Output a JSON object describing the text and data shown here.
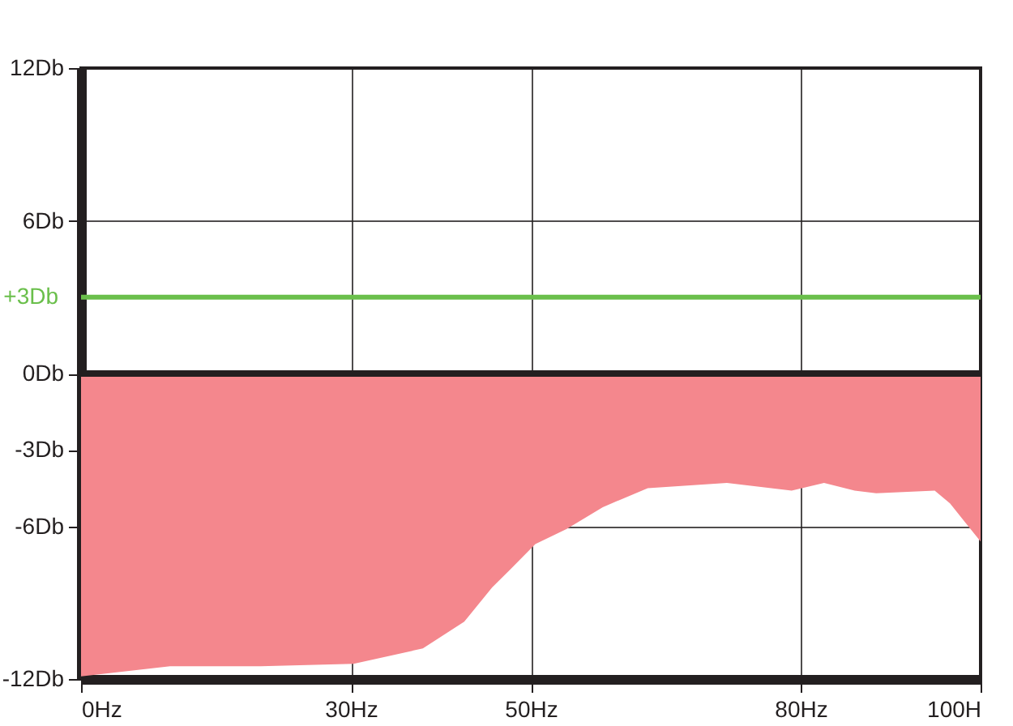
{
  "chart_data": {
    "type": "area",
    "x": [
      0,
      9.9,
      20,
      30.3,
      38,
      42.6,
      45.7,
      47.7,
      50.5,
      54,
      58,
      63,
      71.8,
      79,
      82.6,
      86,
      88.4,
      94.9,
      96.6,
      98.4,
      100
    ],
    "values": [
      -11.9,
      -11.5,
      -11.5,
      -11.4,
      -10.8,
      -9.75,
      -8.4,
      -7.7,
      -6.7,
      -6.1,
      -5.25,
      -4.5,
      -4.3,
      -4.6,
      -4.3,
      -4.6,
      -4.7,
      -4.6,
      -5.1,
      -5.9,
      -6.6
    ],
    "color": "#f4878d",
    "xlim": [
      0,
      100
    ],
    "xticks": [
      {
        "value": 0,
        "label": "0Hz"
      },
      {
        "value": 30,
        "label": "30Hz"
      },
      {
        "value": 50,
        "label": "50Hz"
      },
      {
        "value": 80,
        "label": "80Hz"
      },
      {
        "value": 100,
        "label": "100H"
      }
    ],
    "ylim": [
      -12,
      12
    ],
    "yticks": [
      {
        "value": -12,
        "label": "-12Db"
      },
      {
        "value": -6,
        "label": "-6Db"
      },
      {
        "value": -3,
        "label": "-3Db"
      },
      {
        "value": 0,
        "label": "0Db"
      },
      {
        "value": 6,
        "label": "6Db"
      },
      {
        "value": 12,
        "label": "12Db"
      }
    ],
    "ref_lines": [
      {
        "axis": "y",
        "value": 3,
        "label": "+3Db",
        "color": "#6abf4b"
      },
      {
        "axis": "y",
        "value": 0,
        "color": "#231f20"
      }
    ],
    "grid": true
  }
}
